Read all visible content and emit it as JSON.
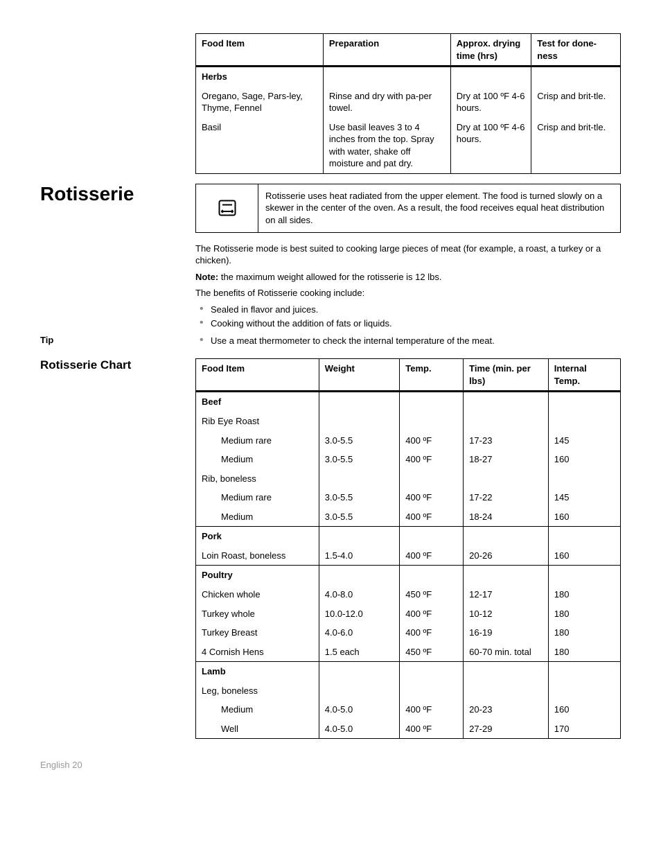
{
  "dryingTable": {
    "headers": [
      "Food Item",
      "Preparation",
      "Approx. drying time (hrs)",
      "Test for done-ness"
    ],
    "rows": [
      {
        "c0": "Herbs",
        "bold": true
      },
      {
        "c0": "Oregano, Sage, Pars-ley, Thyme, Fennel",
        "c1": "Rinse and dry with pa-per towel.",
        "c2": "Dry at 100 ºF 4-6 hours.",
        "c3": "Crisp and brit-tle."
      },
      {
        "c0": "Basil",
        "c1": "Use basil leaves 3 to 4 inches from the top. Spray with water, shake off moisture and pat dry.",
        "c2": "Dry at 100 ºF 4-6 hours.",
        "c3": "Crisp and brit-tle."
      }
    ],
    "colWidths": [
      "30%",
      "30%",
      "19%",
      "21%"
    ]
  },
  "rotisserie": {
    "title": "Rotisserie",
    "noteBoxText": "Rotisserie uses heat radiated from the upper element. The food is turned slowly on a skewer in the center of the oven. As a result, the food receives equal heat distribution on all sides.",
    "para1": "The Rotisserie mode is best suited to cooking large pieces of meat (for example, a roast, a turkey or a chicken).",
    "noteLabel": "Note:",
    "noteText": " the maximum weight allowed for the rotisserie is 12 lbs.",
    "para2": "The benefits of Rotisserie cooking include:",
    "bullets": [
      "Sealed in flavor and juices.",
      "Cooking without the addition of fats or liquids."
    ],
    "tipLabel": "Tip",
    "tipBullet": "Use a meat thermometer to check the internal temperature of the meat.",
    "chartTitle": "Rotisserie Chart"
  },
  "rotisserieTable": {
    "headers": [
      "Food Item",
      "Weight",
      "Temp.",
      "Time (min. per lbs)",
      "Internal Temp."
    ],
    "colWidths": [
      "29%",
      "19%",
      "15%",
      "20%",
      "17%"
    ],
    "rows": [
      {
        "c0": "Beef",
        "bold": true
      },
      {
        "c0": "Rib Eye Roast",
        "indent": 0
      },
      {
        "c0": "Medium rare",
        "indent": 2,
        "c1": "3.0-5.5",
        "c2": "400 ºF",
        "c3": "17-23",
        "c4": "145"
      },
      {
        "c0": "Medium",
        "indent": 2,
        "c1": "3.0-5.5",
        "c2": "400 ºF",
        "c3": "18-27",
        "c4": "160"
      },
      {
        "c0": "Rib, boneless",
        "indent": 0
      },
      {
        "c0": "Medium rare",
        "indent": 2,
        "c1": "3.0-5.5",
        "c2": "400 ºF",
        "c3": "17-22",
        "c4": "145"
      },
      {
        "c0": "Medium",
        "indent": 2,
        "c1": "3.0-5.5",
        "c2": "400 ºF",
        "c3": "18-24",
        "c4": "160"
      },
      {
        "c0": "Pork",
        "bold": true,
        "sep": true
      },
      {
        "c0": "Loin Roast, boneless",
        "c1": "1.5-4.0",
        "c2": "400 ºF",
        "c3": "20-26",
        "c4": "160"
      },
      {
        "c0": "Poultry",
        "bold": true,
        "sep": true
      },
      {
        "c0": "Chicken whole",
        "c1": "4.0-8.0",
        "c2": "450 ºF",
        "c3": "12-17",
        "c4": "180"
      },
      {
        "c0": "Turkey whole",
        "c1": "10.0-12.0",
        "c2": "400 ºF",
        "c3": "10-12",
        "c4": "180"
      },
      {
        "c0": "Turkey Breast",
        "c1": "4.0-6.0",
        "c2": "400 ºF",
        "c3": "16-19",
        "c4": "180"
      },
      {
        "c0": "4 Cornish Hens",
        "c1": "1.5 each",
        "c2": "450 ºF",
        "c3": "60-70 min. total",
        "c4": "180"
      },
      {
        "c0": "Lamb",
        "bold": true,
        "sep": true
      },
      {
        "c0": "Leg, boneless",
        "indent": 0
      },
      {
        "c0": "Medium",
        "indent": 2,
        "c1": "4.0-5.0",
        "c2": "400 ºF",
        "c3": "20-23",
        "c4": "160"
      },
      {
        "c0": "Well",
        "indent": 2,
        "c1": "4.0-5.0",
        "c2": "400 ºF",
        "c3": "27-29",
        "c4": "170"
      }
    ]
  },
  "footer": "English 20"
}
